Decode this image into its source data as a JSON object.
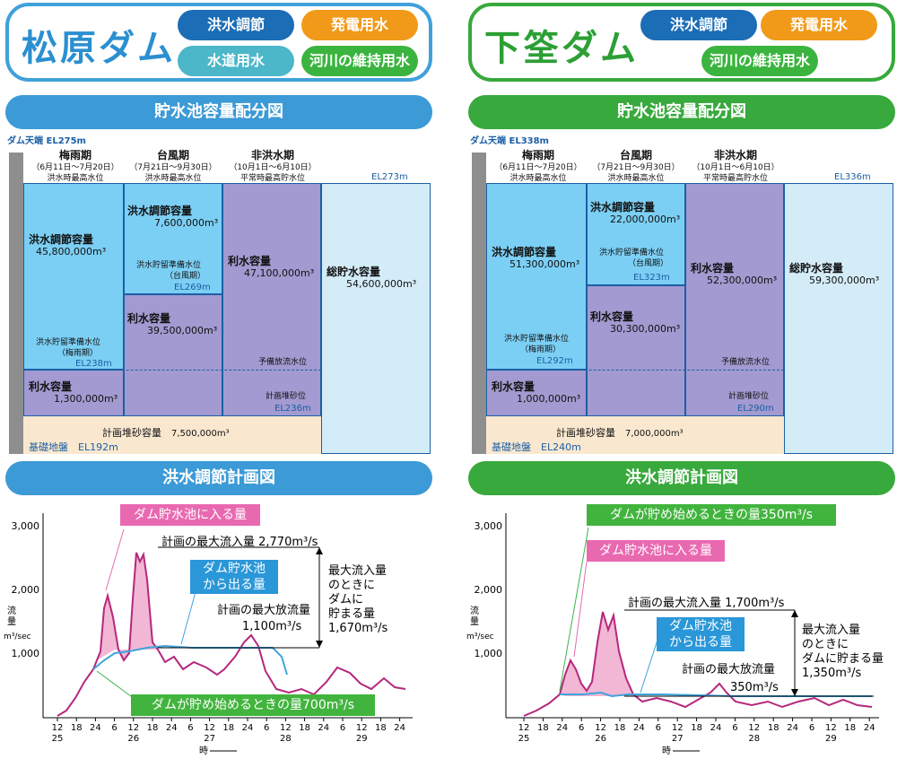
{
  "left": {
    "dam_name": "松原ダム",
    "purposes": [
      "洪水調節",
      "発電用水",
      "水道用水",
      "河川の維持用水"
    ],
    "storage_banner": "貯水池容量配分図",
    "crest": {
      "label": "ダム天端",
      "value": "EL275m"
    },
    "seasons": [
      {
        "name": "梅雨期",
        "period": "（6月11日～7月20日）",
        "sub": "洪水時最高水位"
      },
      {
        "name": "台風期",
        "period": "（7月21日～9月30日）",
        "sub": "洪水時最高水位"
      },
      {
        "name": "非洪水期",
        "period": "（10月1日～6月10日）",
        "sub": "平常時最高貯水位"
      }
    ],
    "el_top": "EL273m",
    "cells": {
      "rainy_flood_label": "洪水調節容量",
      "rainy_flood_value": "45,800,000m³",
      "rainy_reserve_label": "洪水貯留準備水位",
      "rainy_reserve_sub": "（梅雨期）",
      "rainy_reserve_el": "EL238m",
      "rainy_water_label": "利水容量",
      "rainy_water_value": "1,300,000m³",
      "typhoon_flood_label": "洪水調節容量",
      "typhoon_flood_value": "7,600,000m³",
      "typhoon_reserve_label": "洪水貯留準備水位",
      "typhoon_reserve_sub": "（台風期）",
      "typhoon_reserve_el": "EL269m",
      "typhoon_water_label": "利水容量",
      "typhoon_water_value": "39,500,000m³",
      "non_water_label": "利水容量",
      "non_water_value": "47,100,000m³",
      "non_discharge_label": "予備放流水位",
      "sediment_level_label": "計画堆砂位",
      "sediment_level_el": "EL236m",
      "total_label": "総貯水容量",
      "total_value": "54,600,000m³",
      "sediment_label": "計画堆砂容量",
      "sediment_value": "7,500,000m³",
      "base_label": "基礎地盤",
      "base_el": "EL192m"
    },
    "flood_banner": "洪水調節計画図",
    "chart": {
      "inflow_label": "ダム貯水池に入る量",
      "outflow_label": "ダム貯水池\nから出る量",
      "start_label": "ダムが貯め始めるときの量700m³/s",
      "max_inflow": "計画の最大流入量 2,770m³/s",
      "max_discharge": "計画の最大放流量\n1,100m³/s",
      "stored": "最大流入量\nのときに\nダムに\n貯まる量\n1,670m³/s",
      "y_unit": "流\n量\nm³/sec",
      "x_unit": "時",
      "y_ticks": [
        "3,000",
        "2,000",
        "1,000"
      ],
      "x_hours": [
        "12",
        "18",
        "24",
        "6",
        "12",
        "18",
        "24",
        "6",
        "12",
        "18",
        "24",
        "6",
        "12",
        "18",
        "24",
        "6",
        "12",
        "18",
        "24"
      ],
      "x_days": [
        "25",
        "26",
        "27",
        "28",
        "29"
      ]
    }
  },
  "right": {
    "dam_name": "下筌ダム",
    "purposes": [
      "洪水調節",
      "発電用水",
      "河川の維持用水"
    ],
    "storage_banner": "貯水池容量配分図",
    "crest": {
      "label": "ダム天端",
      "value": "EL338m"
    },
    "seasons": [
      {
        "name": "梅雨期",
        "period": "（6月11日～7月20日）",
        "sub": "洪水時最高水位"
      },
      {
        "name": "台風期",
        "period": "（7月21日～9月30日）",
        "sub": "洪水時最高水位"
      },
      {
        "name": "非洪水期",
        "period": "（10月1日～6月10日）",
        "sub": "平常時最高貯水位"
      }
    ],
    "el_top": "EL336m",
    "cells": {
      "rainy_flood_label": "洪水調節容量",
      "rainy_flood_value": "51,300,000m³",
      "rainy_reserve_label": "洪水貯留準備水位",
      "rainy_reserve_sub": "（梅雨期）",
      "rainy_reserve_el": "EL292m",
      "rainy_water_label": "利水容量",
      "rainy_water_value": "1,000,000m³",
      "typhoon_flood_label": "洪水調節容量",
      "typhoon_flood_value": "22,000,000m³",
      "typhoon_reserve_label": "洪水貯留準備水位",
      "typhoon_reserve_sub": "（台風期）",
      "typhoon_reserve_el": "EL323m",
      "typhoon_water_label": "利水容量",
      "typhoon_water_value": "30,300,000m³",
      "non_water_label": "利水容量",
      "non_water_value": "52,300,000m³",
      "non_discharge_label": "予備放流水位",
      "sediment_level_label": "計画堆砂位",
      "sediment_level_el": "EL290m",
      "total_label": "総貯水容量",
      "total_value": "59,300,000m³",
      "sediment_label": "計画堆砂容量",
      "sediment_value": "7,000,000m³",
      "base_label": "基礎地盤",
      "base_el": "EL240m"
    },
    "flood_banner": "洪水調節計画図",
    "chart": {
      "inflow_label": "ダム貯水池に入る量",
      "outflow_label": "ダム貯水池\nから出る量",
      "start_label": "ダムが貯め始めるときの量350m³/s",
      "max_inflow": "計画の最大流入量 1,700m³/s",
      "max_discharge": "計画の最大放流量\n350m³/s",
      "stored": "最大流入量\nのときに\nダムに貯まる量\n1,350m³/s",
      "y_unit": "流\n量\nm³/sec",
      "x_unit": "時",
      "y_ticks": [
        "3,000",
        "2,000",
        "1,000"
      ],
      "x_hours": [
        "12",
        "18",
        "24",
        "6",
        "12",
        "18",
        "24",
        "6",
        "12",
        "18",
        "24",
        "6",
        "12",
        "18",
        "24",
        "6",
        "12",
        "18",
        "24"
      ],
      "x_days": [
        "25",
        "26",
        "27",
        "28",
        "29"
      ]
    }
  }
}
